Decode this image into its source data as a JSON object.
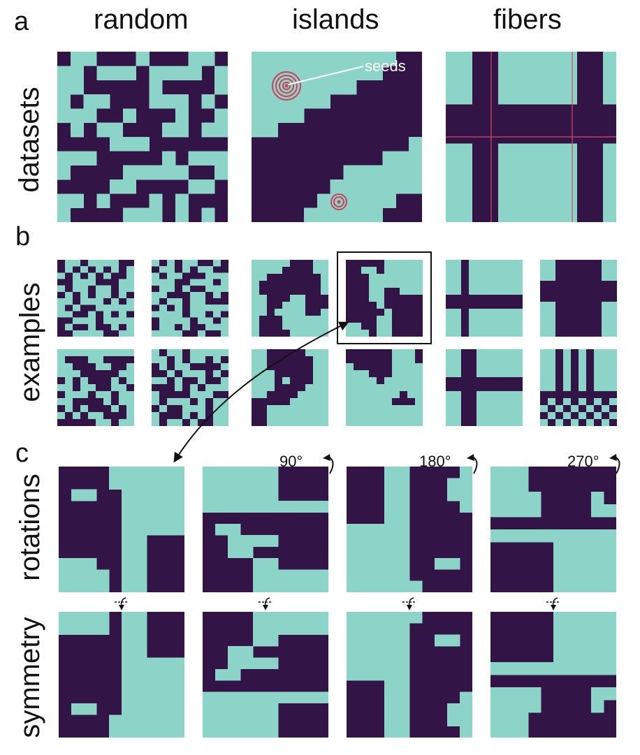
{
  "colors": {
    "light": "#8cd3c8",
    "dark": "#331446",
    "seed": "#d23f5a",
    "line": "#ffffff",
    "fiber_line": "#e0455e"
  },
  "panels": {
    "a": {
      "letter": "a",
      "row_label": "datasets"
    },
    "b": {
      "letter": "b",
      "row_label": "examples"
    },
    "c": {
      "letter": "c",
      "row_label_rot": "rotations",
      "row_label_sym": "symmetry"
    }
  },
  "columns": {
    "random": "random",
    "islands": "islands",
    "fibers": "fibers"
  },
  "annotations": {
    "seeds": "seeds"
  },
  "rotations": {
    "r90": "90°",
    "r180": "180°",
    "r270": "270°"
  },
  "grids": {
    "a_random": [
      "0110001000110",
      "1101110111101",
      "1100000100001",
      "1011000111010",
      "1110010001001",
      "0101100011011",
      "0000111000000",
      "1110000010111",
      "1000011111001",
      "0000110000110",
      "1101000101000",
      "1000011101010"
    ],
    "a_islands": [
      "1111111111100",
      "1111111111000",
      "1111111100000",
      "1111110000000",
      "1111000000000",
      "1100000000000",
      "0000000000001",
      "0000000000111",
      "0000000111111",
      "0000001111111",
      "0000011111100",
      "0000111111000"
    ],
    "a_fibers": [
      "1100111111001",
      "1100111111001",
      "1100111111001",
      "1100111111001",
      "0000000000000",
      "0000000000000",
      "0000000000000",
      "1100111111001",
      "1100111111001",
      "1100111111001",
      "1100111111001",
      "1100111111001",
      "1100111111001"
    ],
    "b1": [
      "0110111100",
      "0101010101",
      "1010101001",
      "0011100011",
      "1011011011",
      "0101011010",
      "1101110101",
      "1010011111",
      "1100101010",
      "0011101111",
      "0100100101",
      "0011110011"
    ],
    "b2": [
      "1010110010",
      "0110101100",
      "1011000111",
      "1110011101",
      "0110100111",
      "1100011010",
      "1011011000",
      "0101011111",
      "1111011010",
      "0111101101",
      "0110100111",
      "1111001001"
    ],
    "b3": [
      "1111100011",
      "1111000011",
      "1100000001",
      "1000000001",
      "1000000001",
      "1100011000",
      "1100111000",
      "1101111001",
      "1000111111",
      "1000111111",
      "1000011111"
    ],
    "b4": [
      "0000011111",
      "0011011111",
      "0001111111",
      "0001111111",
      "0001100111",
      "0001100000",
      "0000100000",
      "0000010000",
      "0000110000",
      "1100110000",
      "1110110000"
    ],
    "b5": [
      "1101111111",
      "1101111111",
      "1101111111",
      "1101111111",
      "1101111111",
      "0000000000",
      "0000000000",
      "1101111111",
      "1101111111",
      "1101111111",
      "1101111111"
    ],
    "b6": [
      "1100000011",
      "1100000011",
      "1100000011",
      "0000000000",
      "0000000000",
      "0000000000",
      "1100000011",
      "1100000011",
      "1100000011",
      "1100000011",
      "1100000011"
    ],
    "b7": [
      "1111111111",
      "1000110000",
      "1100011001",
      "1110000011",
      "0101000101",
      "1101100110",
      "0111011011",
      "1100001011",
      "0101000101",
      "1010110001",
      "0000011011"
    ],
    "b8": [
      "1011011111",
      "1101011010",
      "0101100001",
      "0010111010",
      "1101001001",
      "0001010111",
      "1000011100",
      "1011101011",
      "0100111011",
      "1000101011",
      "1011010011"
    ],
    "b9": [
      "1100000111",
      "1100000011",
      "1100000011",
      "1110000011",
      "1110100011",
      "1110000111",
      "1100001111",
      "0000011111",
      "0011111111",
      "0011111111",
      "0011111111"
    ],
    "b10": [
      "0000001110",
      "0000001110",
      "1000001111",
      "1110001111",
      "1111011111",
      "1111111111",
      "1111111011",
      "1111110001",
      "1111111111",
      "1111111111",
      "1111111111"
    ],
    "b11": [
      "1100111111",
      "1100111111",
      "1100111111",
      "1100111111",
      "0000000000",
      "0000000000",
      "1100111111",
      "1100111111",
      "1100111111",
      "1100111111",
      "1100111111"
    ],
    "b12": [
      "1101010111",
      "1101010111",
      "1101010111",
      "1101010111",
      "1101010111",
      "1101010111",
      "0000000000",
      "0101010101",
      "1010101010",
      "0101010101",
      "1010101010"
    ],
    "c_rot0": [
      "0000111111",
      "0000111111",
      "0110011111",
      "0000011111",
      "0000011111",
      "0000011111",
      "0000011000",
      "0000011000",
      "1110011000",
      "1111011000",
      "1111011000"
    ],
    "c_rot90": [
      "1111110000",
      "1111110000",
      "1111110000",
      "1111111111",
      "0000000000",
      "0110000000",
      "0011110000",
      "0011000000",
      "0000110000",
      "0000111111",
      "0000111111"
    ],
    "c_rot180": [
      "0001100001",
      "0001100011",
      "0001100011",
      "0001100001",
      "0001100000",
      "1111100000",
      "1111100000",
      "1111100000",
      "1111100110",
      "1111100000",
      "1111110000"
    ],
    "c_rot270": [
      "1110000000",
      "1110000000",
      "1111000010",
      "1111000011",
      "0000000000",
      "1111111111",
      "0000011111",
      "0000011111",
      "0000011111",
      "0000011111"
    ],
    "c_sym0": [
      "1111011000",
      "1111011000",
      "0000011000",
      "0000011000",
      "0000011111",
      "0000011111",
      "0000011111",
      "0000011111",
      "0110011111",
      "0000111111",
      "0000111111"
    ],
    "c_sym90": [
      "0000111111",
      "0000111111",
      "0000110000",
      "0011000000",
      "0011110000",
      "0110000000",
      "0000000000",
      "1111111111",
      "1111110000",
      "1111110000",
      "1111110000"
    ],
    "c_sym180": [
      "1111110000",
      "1111100000",
      "1111100110",
      "1111100000",
      "1111100000",
      "1111100000",
      "0001100000",
      "0001100001",
      "0001100011",
      "0001100011",
      "0001100001"
    ],
    "c_sym270": [
      "0000011111",
      "0000011111",
      "0000011111",
      "0000011111",
      "1111111111",
      "0000000000",
      "1111000011",
      "1111000010",
      "1110000000",
      "1110000000"
    ]
  }
}
